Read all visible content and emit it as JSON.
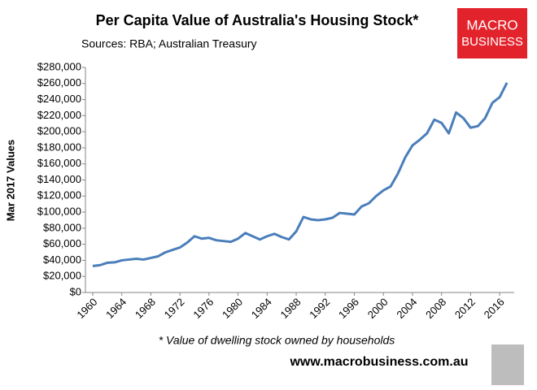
{
  "chart_data": {
    "type": "line",
    "title": "Per Capita Value of Australia's Housing Stock*",
    "subtitle": "Sources: RBA; Australian Treasury",
    "y_label": "Mar 2017 Values",
    "footnote": "* Value of dwelling stock owned by households",
    "website": "www.macrobusiness.com.au",
    "logo": [
      "MACRO",
      "BUSINESS"
    ],
    "x": [
      1960,
      1961,
      1962,
      1963,
      1964,
      1965,
      1966,
      1967,
      1968,
      1969,
      1970,
      1971,
      1972,
      1973,
      1974,
      1975,
      1976,
      1977,
      1978,
      1979,
      1980,
      1981,
      1982,
      1983,
      1984,
      1985,
      1986,
      1987,
      1988,
      1989,
      1990,
      1991,
      1992,
      1993,
      1994,
      1995,
      1996,
      1997,
      1998,
      1999,
      2000,
      2001,
      2002,
      2003,
      2004,
      2005,
      2006,
      2007,
      2008,
      2009,
      2010,
      2011,
      2012,
      2013,
      2014,
      2015,
      2016,
      2017
    ],
    "series": [
      {
        "name": "Per capita value",
        "color": "#4a7ebb",
        "values": [
          33000,
          34000,
          37000,
          37500,
          40000,
          41000,
          42000,
          41000,
          43000,
          45000,
          50000,
          53000,
          56000,
          62000,
          70000,
          67000,
          68000,
          65000,
          64000,
          63000,
          67000,
          74000,
          70000,
          66000,
          70000,
          73000,
          69000,
          66000,
          76000,
          94000,
          91000,
          90000,
          91000,
          93000,
          99000,
          98000,
          97000,
          107000,
          111000,
          120000,
          127000,
          132000,
          148000,
          168000,
          183000,
          190000,
          198000,
          215000,
          211000,
          198000,
          224000,
          217000,
          205000,
          207000,
          217000,
          236000,
          243000,
          261000
        ]
      }
    ],
    "xlim": [
      1959,
      2018
    ],
    "xticks": [
      1960,
      1964,
      1968,
      1972,
      1976,
      1980,
      1984,
      1988,
      1992,
      1996,
      2000,
      2004,
      2008,
      2012,
      2016
    ],
    "ylim": [
      0,
      280000
    ],
    "yticks": [
      {
        "value": 0,
        "label": "$0"
      },
      {
        "value": 20000,
        "label": "$20,000"
      },
      {
        "value": 40000,
        "label": "$40,000"
      },
      {
        "value": 60000,
        "label": "$60,000"
      },
      {
        "value": 80000,
        "label": "$80,000"
      },
      {
        "value": 100000,
        "label": "$100,000"
      },
      {
        "value": 120000,
        "label": "$120,000"
      },
      {
        "value": 140000,
        "label": "$140,000"
      },
      {
        "value": 160000,
        "label": "$160,000"
      },
      {
        "value": 180000,
        "label": "$180,000"
      },
      {
        "value": 200000,
        "label": "$200,000"
      },
      {
        "value": 220000,
        "label": "$220,000"
      },
      {
        "value": 240000,
        "label": "$240,000"
      },
      {
        "value": 260000,
        "label": "$260,000"
      },
      {
        "value": 280000,
        "label": "$280,000"
      }
    ],
    "grid": false
  }
}
